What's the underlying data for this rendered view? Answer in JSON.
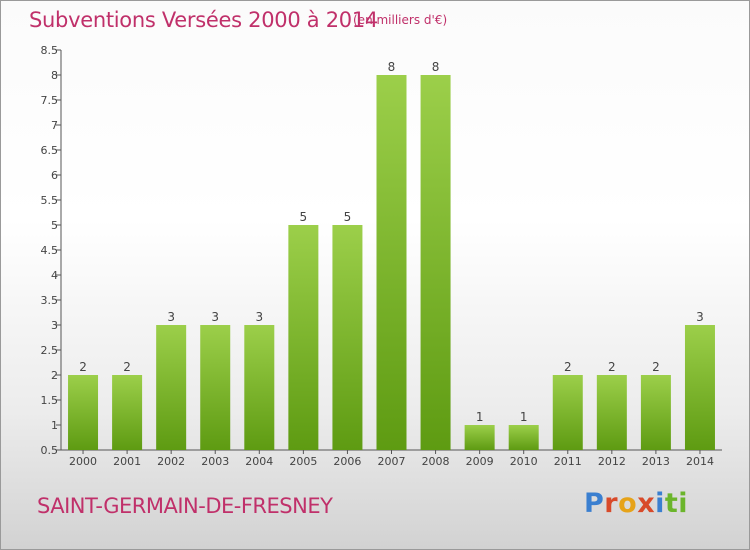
{
  "title": "Subventions Versées 2000 à 2014",
  "subtitle": "(en milliers d'€)",
  "commune": "SAINT-GERMAIN-DE-FRESNEY",
  "logo": {
    "text": "Proxiti",
    "colors": [
      "#3a7fd0",
      "#e6a319",
      "#d84a2a",
      "#6bb52b"
    ]
  },
  "chart_data": {
    "type": "bar",
    "title": "Subventions Versées 2000 à 2014",
    "subtitle": "(en milliers d'€)",
    "xlabel": "",
    "ylabel": "",
    "categories": [
      "2000",
      "2001",
      "2002",
      "2003",
      "2004",
      "2005",
      "2006",
      "2007",
      "2008",
      "2009",
      "2010",
      "2011",
      "2012",
      "2013",
      "2014"
    ],
    "values": [
      2,
      2,
      3,
      3,
      3,
      5,
      5,
      8,
      8,
      1,
      1,
      2,
      2,
      2,
      3
    ],
    "data_labels": [
      "2",
      "2",
      "3",
      "3",
      "3",
      "5",
      "5",
      "8",
      "8",
      "1",
      "1",
      "2",
      "2",
      "2",
      "3"
    ],
    "ylim": [
      0.5,
      8.5
    ],
    "yticks": [
      "0.5",
      "1",
      "1.5",
      "2",
      "2.5",
      "3",
      "3.5",
      "4",
      "4.5",
      "5",
      "5.5",
      "6",
      "6.5",
      "7",
      "7.5",
      "8",
      "8.5"
    ],
    "grid": false,
    "legend": "none",
    "bar_color_top": "#9ccf4a",
    "bar_color_bottom": "#5e9b12"
  }
}
